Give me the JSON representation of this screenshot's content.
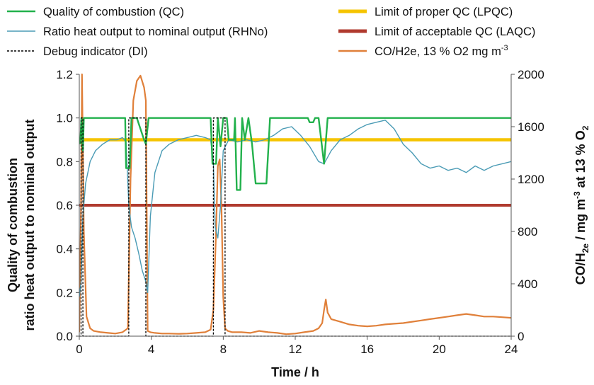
{
  "chart_data": {
    "type": "line",
    "title": "",
    "xlabel": "Time  /  h",
    "ylabel_left": [
      "Quality of combustion",
      "ratio heat output to nominal output"
    ],
    "ylabel_right": {
      "main": "CO/H",
      "sub2": "2",
      "e": "e",
      "rest": "  / mg m",
      "sup": "-3",
      "at": "  at 13 % O",
      "sub2b": "2"
    },
    "xlim": [
      0,
      24
    ],
    "ylim_left": [
      0,
      1.2
    ],
    "ylim_right": [
      0,
      2000
    ],
    "x_ticks": [
      0,
      4,
      8,
      12,
      16,
      20,
      24
    ],
    "y_left_ticks": [
      "0.0",
      "0.2",
      "0.4",
      "0.6",
      "0.8",
      "1.0",
      "1.2"
    ],
    "y_right_ticks": [
      "0",
      "400",
      "800",
      "1200",
      "1600",
      "2000"
    ],
    "grid": false,
    "legend": [
      {
        "id": "qc",
        "label": "Quality of combustion (QC)",
        "color": "#22b14c",
        "style": "solid",
        "col": 0,
        "row": 0
      },
      {
        "id": "rhno",
        "label": "Ratio heat output to nominal output (RHNo)",
        "color": "#4a9bb5",
        "style": "thin",
        "col": 0,
        "row": 1
      },
      {
        "id": "di",
        "label": "Debug indicator (DI)",
        "color": "#000000",
        "style": "dashed",
        "col": 0,
        "row": 2
      },
      {
        "id": "lpqc",
        "label": "Limit of proper QC (LPQC)",
        "color": "#f5c400",
        "style": "thick",
        "col": 1,
        "row": 0
      },
      {
        "id": "laqc",
        "label": "Limit of acceptable QC (LAQC)",
        "color": "#b03a2e",
        "style": "thick",
        "col": 1,
        "row": 1
      },
      {
        "id": "co",
        "label": "CO/H2e, 13 % O2 mg m",
        "label_sup": "-3",
        "color": "#e0803a",
        "style": "solid",
        "col": 1,
        "row": 2
      }
    ],
    "series": [
      {
        "name": "Limit of proper QC (LPQC)",
        "axis": "left",
        "x": [
          0,
          24
        ],
        "y": [
          0.9,
          0.9
        ]
      },
      {
        "name": "Limit of acceptable QC (LAQC)",
        "axis": "left",
        "x": [
          0,
          24
        ],
        "y": [
          0.6,
          0.6
        ]
      },
      {
        "name": "Debug indicator (DI)",
        "axis": "left",
        "x": [
          0,
          0.1,
          0.1,
          0.2,
          0.2,
          2.75,
          2.75,
          3.7,
          3.7,
          3.8,
          3.8,
          7.45,
          7.45,
          8.1,
          8.1,
          24
        ],
        "y": [
          0,
          0,
          1.0,
          1.0,
          0,
          0,
          1.0,
          1.0,
          0,
          0,
          0,
          0,
          1.0,
          1.0,
          0,
          0
        ]
      },
      {
        "name": "Quality of combustion (QC)",
        "axis": "left",
        "x": [
          0.05,
          0.12,
          0.2,
          0.25,
          2.55,
          2.6,
          2.8,
          2.9,
          3.2,
          3.6,
          3.7,
          3.85,
          3.95,
          7.3,
          7.4,
          7.6,
          7.7,
          7.85,
          8.0,
          8.2,
          8.3,
          8.6,
          8.65,
          8.75,
          8.95,
          9.05,
          9.2,
          9.4,
          9.6,
          9.8,
          10.4,
          10.5,
          10.6,
          12.7,
          12.8,
          13.0,
          13.1,
          13.3,
          13.6,
          13.8,
          14.0,
          24
        ],
        "y": [
          0.88,
          1.0,
          0.85,
          1.0,
          1.0,
          0.77,
          0.77,
          1.0,
          1.0,
          0.9,
          0.88,
          1.0,
          1.0,
          1.0,
          0.79,
          0.79,
          1.0,
          0.87,
          1.0,
          1.0,
          0.9,
          0.9,
          1.0,
          0.67,
          0.67,
          1.0,
          0.9,
          1.0,
          0.88,
          0.7,
          0.7,
          0.85,
          1.0,
          1.0,
          0.98,
          0.98,
          1.0,
          1.0,
          0.79,
          1.0,
          1.0,
          1.0
        ]
      },
      {
        "name": "Ratio heat output to nominal output (RHNo)",
        "axis": "left",
        "x": [
          0,
          0.1,
          0.2,
          0.35,
          0.6,
          0.9,
          1.3,
          1.7,
          2.1,
          2.4,
          2.6,
          2.75,
          2.9,
          3.1,
          3.3,
          3.5,
          3.7,
          3.8,
          3.95,
          4.2,
          4.6,
          5.0,
          5.5,
          6.0,
          6.5,
          7.0,
          7.3,
          7.45,
          7.55,
          7.7,
          7.85,
          8.0,
          8.3,
          8.8,
          9.3,
          9.8,
          10.3,
          10.8,
          11.3,
          11.8,
          12.3,
          12.8,
          13.3,
          13.6,
          14.0,
          14.5,
          15.0,
          15.5,
          16.0,
          16.5,
          17.0,
          17.5,
          18.0,
          18.5,
          19.0,
          19.5,
          20.0,
          20.5,
          21.0,
          21.5,
          22.0,
          22.5,
          23.0,
          23.5,
          24.0
        ],
        "y": [
          0.18,
          0.25,
          0.55,
          0.7,
          0.8,
          0.85,
          0.88,
          0.9,
          0.9,
          0.91,
          0.89,
          0.6,
          0.5,
          0.45,
          0.38,
          0.3,
          0.25,
          0.2,
          0.55,
          0.75,
          0.85,
          0.88,
          0.9,
          0.91,
          0.92,
          0.91,
          0.9,
          0.8,
          0.5,
          0.45,
          0.6,
          0.85,
          0.9,
          0.89,
          0.9,
          0.89,
          0.9,
          0.92,
          0.95,
          0.96,
          0.92,
          0.87,
          0.8,
          0.79,
          0.85,
          0.9,
          0.92,
          0.95,
          0.97,
          0.98,
          0.99,
          0.95,
          0.88,
          0.84,
          0.79,
          0.77,
          0.78,
          0.76,
          0.77,
          0.75,
          0.78,
          0.76,
          0.78,
          0.79,
          0.8
        ]
      },
      {
        "name": "CO/H2e, 13 % O2 mg m-3",
        "axis": "right",
        "x": [
          0,
          0.1,
          0.15,
          0.25,
          0.4,
          0.6,
          0.8,
          1.2,
          1.6,
          2.0,
          2.4,
          2.7,
          2.85,
          3.0,
          3.2,
          3.4,
          3.6,
          3.7,
          3.8,
          3.95,
          4.2,
          4.6,
          5.0,
          5.5,
          6.0,
          6.5,
          7.0,
          7.3,
          7.45,
          7.6,
          7.7,
          7.8,
          7.9,
          8.0,
          8.1,
          8.25,
          8.5,
          9.0,
          9.5,
          10.0,
          10.5,
          11.0,
          11.5,
          12.0,
          12.5,
          13.0,
          13.3,
          13.5,
          13.6,
          13.7,
          13.8,
          14.0,
          14.5,
          15.0,
          15.5,
          16.0,
          16.5,
          17.0,
          17.5,
          18.0,
          18.5,
          19.0,
          19.5,
          20.0,
          20.5,
          21.0,
          21.5,
          22.0,
          22.5,
          23.0,
          23.5,
          24.0
        ],
        "y": [
          30,
          1000,
          2000,
          800,
          150,
          60,
          40,
          30,
          25,
          20,
          30,
          60,
          1200,
          1800,
          1950,
          1990,
          1900,
          1800,
          40,
          30,
          25,
          20,
          20,
          18,
          20,
          25,
          30,
          50,
          200,
          800,
          1300,
          1350,
          1000,
          300,
          60,
          40,
          30,
          30,
          25,
          40,
          30,
          25,
          15,
          20,
          30,
          40,
          60,
          100,
          200,
          280,
          180,
          130,
          110,
          90,
          80,
          75,
          80,
          90,
          95,
          100,
          110,
          120,
          130,
          140,
          150,
          160,
          170,
          160,
          150,
          150,
          145,
          140
        ]
      }
    ]
  }
}
